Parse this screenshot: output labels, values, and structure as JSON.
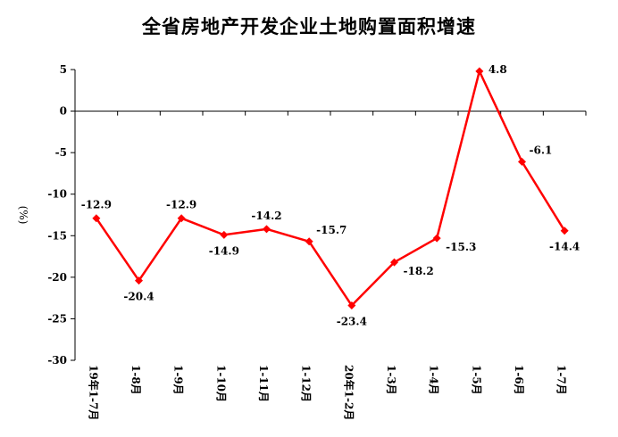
{
  "chart_data": {
    "type": "line",
    "title": "全省房地产开发企业土地购置面积增速",
    "ylabel": "(%)",
    "xlabel": "",
    "ylim": [
      -30,
      5
    ],
    "yticks": [
      5,
      0,
      -5,
      -10,
      -15,
      -20,
      -25,
      -30
    ],
    "grid": false,
    "legend": "none",
    "categories": [
      "19年1-7月",
      "1-8月",
      "1-9月",
      "1-10月",
      "1-11月",
      "1-12月",
      "20年1-2月",
      "1-3月",
      "1-4月",
      "1-5月",
      "1-6月",
      "1-7月"
    ],
    "series": [
      {
        "values": [
          -12.9,
          -20.4,
          -12.9,
          -14.9,
          -14.2,
          -15.7,
          -23.4,
          -18.2,
          -15.3,
          4.8,
          -6.1,
          -14.4
        ],
        "labels": [
          "-12.9",
          "-20.4",
          "-12.9",
          "-14.9",
          "-14.2",
          "-15.7",
          "-23.4",
          "-18.2",
          "-15.3",
          "4.8",
          "-6.1",
          "-14.4"
        ],
        "color": "#ff0000",
        "marker": "diamond"
      }
    ]
  }
}
